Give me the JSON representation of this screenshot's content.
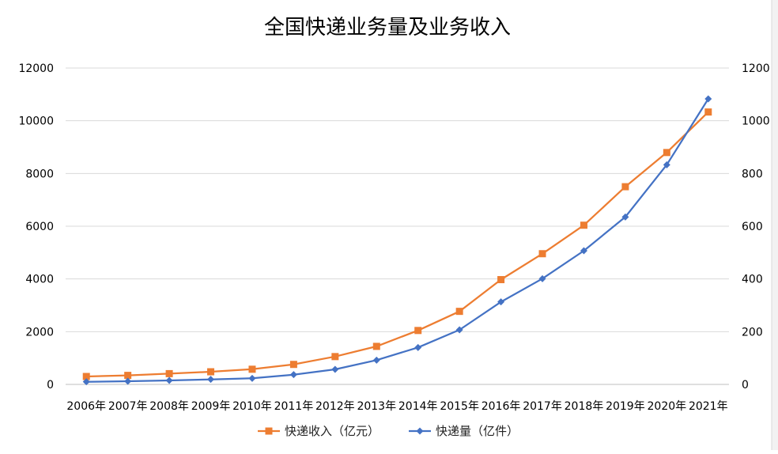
{
  "chart_data": {
    "type": "line",
    "title": "全国快递业务量及业务收入",
    "categories": [
      "2006年",
      "2007年",
      "2008年",
      "2009年",
      "2010年",
      "2011年",
      "2012年",
      "2013年",
      "2014年",
      "2015年",
      "2016年",
      "2017年",
      "2018年",
      "2019年",
      "2020年",
      "2021年"
    ],
    "y_left": {
      "min": 0,
      "max": 12000,
      "ticks": [
        0,
        2000,
        4000,
        6000,
        8000,
        10000,
        12000
      ]
    },
    "y_right": {
      "min": 0,
      "max": 1200,
      "ticks": [
        0,
        200,
        400,
        600,
        800,
        1000,
        1200
      ]
    },
    "grid": true,
    "legend_position": "bottom",
    "series": [
      {
        "name": "快递收入（亿元）",
        "axis": "left",
        "color": "#ED7D31",
        "marker": "square",
        "values": [
          300,
          342,
          408,
          479,
          575,
          758,
          1055,
          1442,
          2045,
          2770,
          3974,
          4957,
          6038,
          7498,
          8795,
          10332
        ]
      },
      {
        "name": "快递量（亿件）",
        "axis": "right",
        "color": "#4472C4",
        "marker": "diamond",
        "values": [
          10,
          12,
          15,
          19,
          23,
          37,
          57,
          92,
          140,
          207,
          313,
          401,
          507,
          635,
          833,
          1083
        ]
      }
    ]
  }
}
